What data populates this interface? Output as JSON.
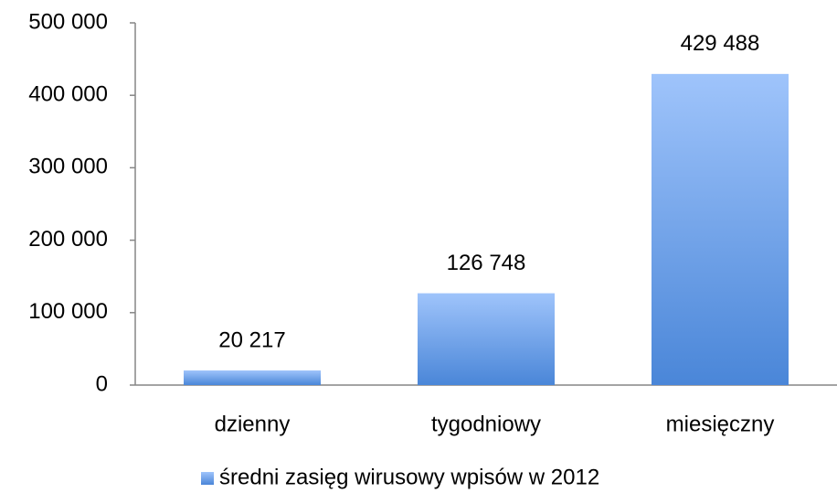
{
  "chart_data": {
    "type": "bar",
    "categories": [
      "dzienny",
      "tygodniowy",
      "miesięczny"
    ],
    "series": [
      {
        "name": "średni zasięg wirusowy wpisów w 2012",
        "color": "#4a86d8",
        "values": [
          20217,
          126748,
          429488
        ],
        "value_labels": [
          "20 217",
          "126 748",
          "429 488"
        ]
      }
    ],
    "ylim": [
      0,
      500000
    ],
    "yticks": [
      0,
      {
        "value": 100000,
        "label": "100 000"
      },
      {
        "value": 200000,
        "label": "200 000"
      },
      {
        "value": 300000,
        "label": "300 000"
      },
      {
        "value": 400000,
        "label": "400 000"
      },
      {
        "value": 500000,
        "label": "500 000"
      }
    ],
    "legend": "bottom"
  }
}
